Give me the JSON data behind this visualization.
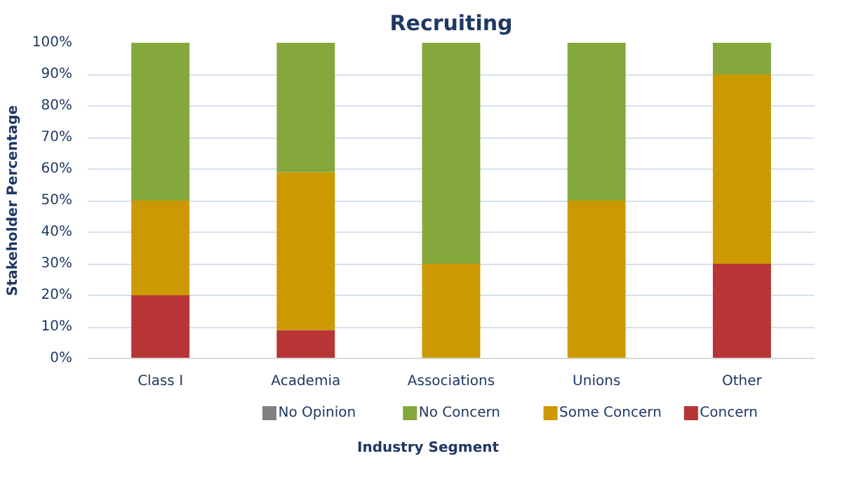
{
  "chart_data": {
    "type": "bar",
    "stacked": true,
    "title": "Recruiting",
    "xlabel": "Industry Segment",
    "ylabel": "Stakeholder Percentage",
    "categories": [
      "Class I",
      "Academia",
      "Associations",
      "Unions",
      "Other"
    ],
    "series": [
      {
        "name": "Concern",
        "color": "#b83535",
        "values": [
          20,
          9,
          0,
          0,
          30
        ]
      },
      {
        "name": "Some Concern",
        "color": "#cc9900",
        "values": [
          30,
          50,
          30,
          50,
          60
        ]
      },
      {
        "name": "No Concern",
        "color": "#84a83c",
        "values": [
          50,
          41,
          70,
          50,
          10
        ]
      },
      {
        "name": "No Opinion",
        "color": "#808080",
        "values": [
          0,
          0,
          0,
          0,
          0
        ]
      }
    ],
    "ylim": [
      0,
      100
    ],
    "yticks": [
      {
        "value": 0,
        "label": "0%"
      },
      {
        "value": 10,
        "label": "10%"
      },
      {
        "value": 20,
        "label": "20%"
      },
      {
        "value": 30,
        "label": "30%"
      },
      {
        "value": 40,
        "label": "40%"
      },
      {
        "value": 50,
        "label": "50%"
      },
      {
        "value": 60,
        "label": "60%"
      },
      {
        "value": 70,
        "label": "70%"
      },
      {
        "value": 80,
        "label": "80%"
      },
      {
        "value": 90,
        "label": "90%"
      },
      {
        "value": 100,
        "label": "100%"
      }
    ],
    "grid": "y",
    "legend": "bottom"
  }
}
